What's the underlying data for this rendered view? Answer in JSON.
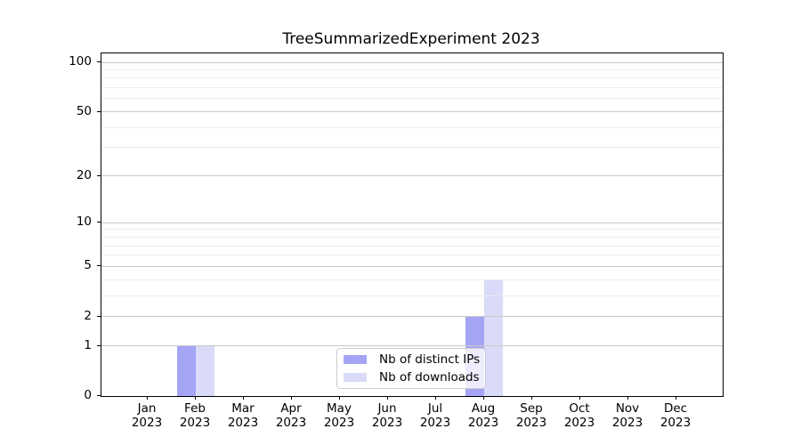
{
  "title": "TreeSummarizedExperiment 2023",
  "chart_data": {
    "type": "bar",
    "title": "TreeSummarizedExperiment 2023",
    "categories": [
      "Jan 2023",
      "Feb 2023",
      "Mar 2023",
      "Apr 2023",
      "May 2023",
      "Jun 2023",
      "Jul 2023",
      "Aug 2023",
      "Sep 2023",
      "Oct 2023",
      "Nov 2023",
      "Dec 2023"
    ],
    "series": [
      {
        "name": "Nb of distinct IPs",
        "color": "#a5a5f5",
        "values": [
          0,
          1,
          0,
          0,
          0,
          0,
          0,
          2,
          0,
          0,
          0,
          0
        ]
      },
      {
        "name": "Nb of downloads",
        "color": "#dadaf9",
        "values": [
          0,
          1,
          0,
          0,
          0,
          0,
          0,
          4,
          0,
          0,
          0,
          0
        ]
      }
    ],
    "xlabel": "",
    "ylabel": "",
    "yscale": "log1p",
    "ylim": [
      0,
      100
    ],
    "yticks": [
      0,
      1,
      2,
      5,
      10,
      20,
      50,
      100
    ],
    "yticks_minor": [
      3,
      4,
      6,
      7,
      8,
      9,
      30,
      40,
      60,
      70,
      80,
      90
    ],
    "grid": "on",
    "legend_position": "inside-lower-center"
  },
  "colors": {
    "grid_major": "#c9c9c9",
    "grid_minor": "#ececec",
    "spine": "#000000",
    "legend_border": "#cccccc",
    "text": "#000000"
  }
}
